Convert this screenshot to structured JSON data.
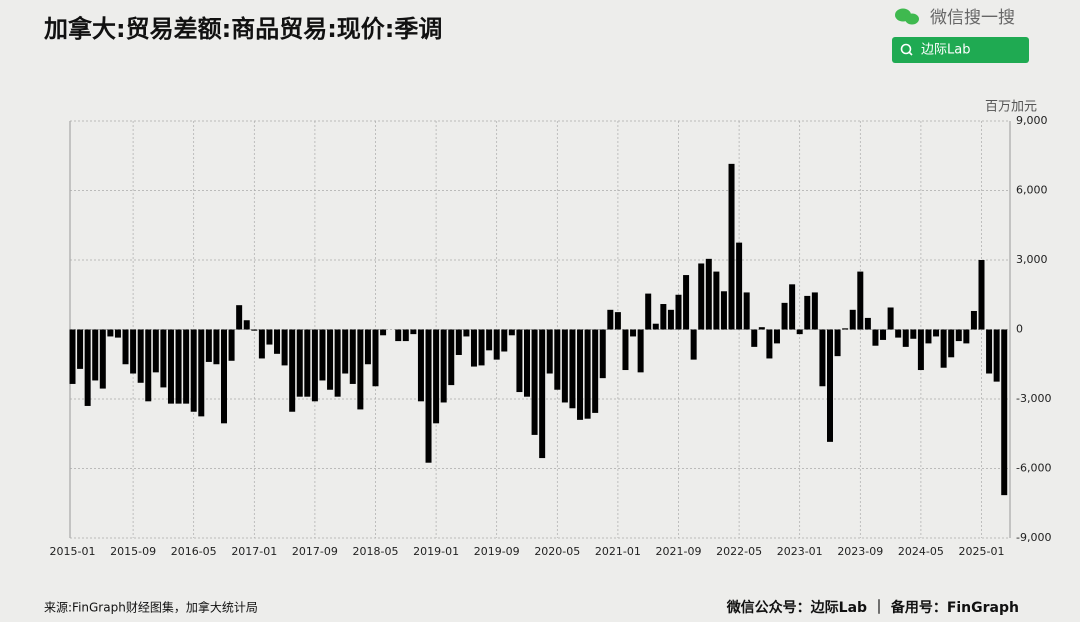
{
  "chart_data": {
    "type": "bar",
    "title": "加拿大:贸易差额:商品贸易:现价:季调",
    "unit": "百万加元",
    "watermark": "微信搜一搜",
    "search": "边际Lab",
    "source": "来源:FinGraph财经图集，加拿大统计局",
    "credit": "微信公众号：边际Lab ｜ 备用号：FinGraph",
    "color": "#000000",
    "grid": true,
    "categories": [
      "2015-01",
      null,
      null,
      null,
      null,
      null,
      null,
      null,
      "2015-09",
      null,
      null,
      null,
      null,
      null,
      null,
      null,
      "2016-05",
      null,
      null,
      null,
      null,
      null,
      null,
      null,
      "2017-01",
      null,
      null,
      null,
      null,
      null,
      null,
      null,
      "2017-09",
      null,
      null,
      null,
      null,
      null,
      null,
      null,
      "2018-05",
      null,
      null,
      null,
      null,
      null,
      null,
      null,
      "2019-01",
      null,
      null,
      null,
      null,
      null,
      null,
      null,
      "2019-09",
      null,
      null,
      null,
      null,
      null,
      null,
      null,
      "2020-05",
      null,
      null,
      null,
      null,
      null,
      null,
      null,
      "2021-01",
      null,
      null,
      null,
      null,
      null,
      null,
      null,
      "2021-09",
      null,
      null,
      null,
      null,
      null,
      null,
      null,
      "2022-05",
      null,
      null,
      null,
      null,
      null,
      null,
      null,
      "2023-01",
      null,
      null,
      null,
      null,
      null,
      null,
      null,
      "2023-09",
      null,
      null,
      null,
      null,
      null,
      null,
      null,
      "2024-05",
      null,
      null,
      null,
      null,
      null,
      null,
      null,
      "2025-01",
      null,
      null,
      null
    ],
    "values": [
      -2350,
      -1700,
      -3300,
      -2200,
      -2550,
      -300,
      -350,
      -1500,
      -1900,
      -2300,
      -3100,
      -1850,
      -2500,
      -3200,
      -3200,
      -3200,
      -3550,
      -3750,
      -1400,
      -1500,
      -4050,
      -1350,
      1050,
      400,
      -50,
      -1250,
      -650,
      -1050,
      -1550,
      -3550,
      -2900,
      -2900,
      -3100,
      -2200,
      -2600,
      -2900,
      -1900,
      -2350,
      -3450,
      -1500,
      -2450,
      -250,
      0,
      -500,
      -500,
      -200,
      -3100,
      -5750,
      -4050,
      -3150,
      -2400,
      -1100,
      -300,
      -1600,
      -1550,
      -900,
      -1300,
      -950,
      -250,
      -2700,
      -2900,
      -4550,
      -5550,
      -1900,
      -2600,
      -3150,
      -3400,
      -3900,
      -3850,
      -3600,
      -2100,
      850,
      750,
      -1750,
      -300,
      -1850,
      1550,
      250,
      1100,
      850,
      1500,
      2350,
      -1300,
      2850,
      3050,
      2500,
      1650,
      7150,
      3750,
      1600,
      -750,
      100,
      -1250,
      -600,
      1150,
      1950,
      -200,
      1450,
      1600,
      -2450,
      -4850,
      -1150,
      50,
      850,
      2500,
      500,
      -700,
      -450,
      950,
      -350,
      -750,
      -400,
      -1750,
      -600,
      -300,
      -1650,
      -1200,
      -500,
      -600,
      800,
      3000,
      -1900,
      -2250,
      -7150
    ],
    "ylim": [
      -9000,
      9000
    ],
    "yticks": [
      {
        "value": -9000,
        "label": "-9,000"
      },
      {
        "value": -6000,
        "label": "-6,000"
      },
      {
        "value": -3000,
        "label": "-3,000"
      },
      0,
      {
        "value": 3000,
        "label": "3,000"
      },
      {
        "value": 6000,
        "label": "6,000"
      },
      {
        "value": 9000,
        "label": "9,000"
      }
    ]
  }
}
